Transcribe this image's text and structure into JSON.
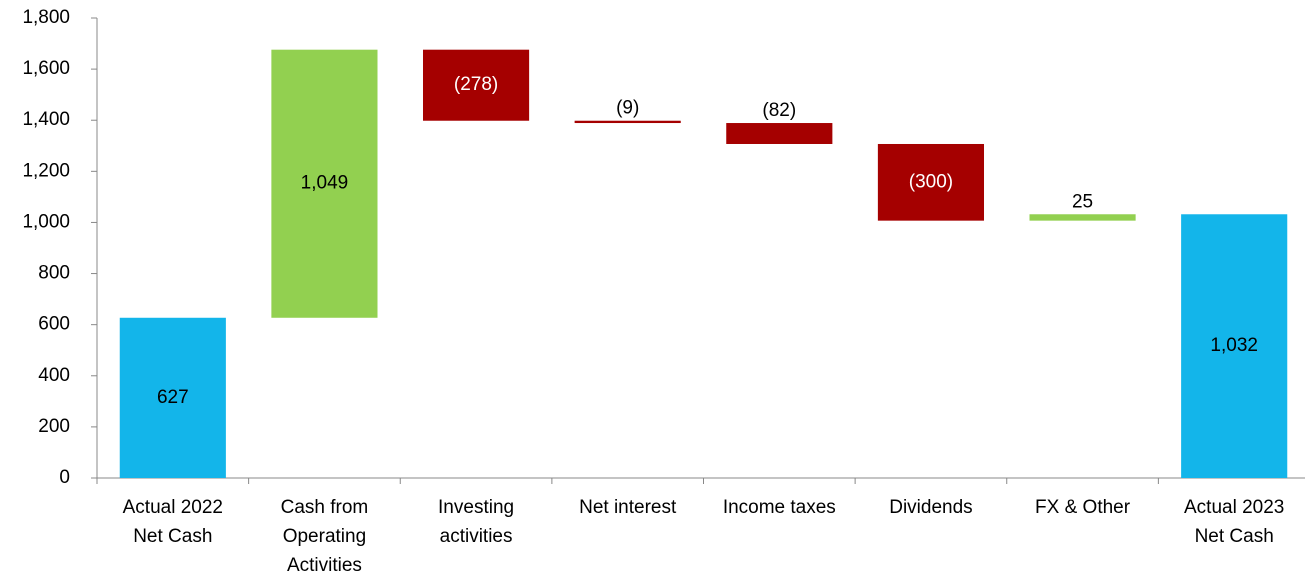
{
  "chart_data": {
    "type": "waterfall",
    "categories": [
      "Actual 2022\nNet Cash",
      "Cash from\nOperating\nActivities",
      "Investing\nactivities",
      "Net interest",
      "Income taxes",
      "Dividends",
      "FX & Other",
      "Actual 2023\nNet Cash"
    ],
    "values": [
      627,
      1049,
      -278,
      -9,
      -82,
      -300,
      25,
      1032
    ],
    "value_labels": [
      "627",
      "1,049",
      "(278)",
      "(9)",
      "(82)",
      "(300)",
      "25",
      "1,032"
    ],
    "measure": [
      "absolute",
      "relative",
      "relative",
      "relative",
      "relative",
      "relative",
      "relative",
      "total"
    ],
    "colors": [
      "#13b5ea",
      "#92d050",
      "#a50000",
      "#a50000",
      "#a50000",
      "#a50000",
      "#92d050",
      "#13b5ea"
    ],
    "ylim": [
      0,
      1800
    ],
    "yticks": [
      0,
      200,
      400,
      600,
      800,
      {
        "value": 1000,
        "label": "1,000"
      },
      {
        "value": 1200,
        "label": "1,200"
      },
      {
        "value": 1400,
        "label": "1,400"
      },
      {
        "value": 1600,
        "label": "1,600"
      },
      {
        "value": 1800,
        "label": "1,800"
      }
    ]
  }
}
